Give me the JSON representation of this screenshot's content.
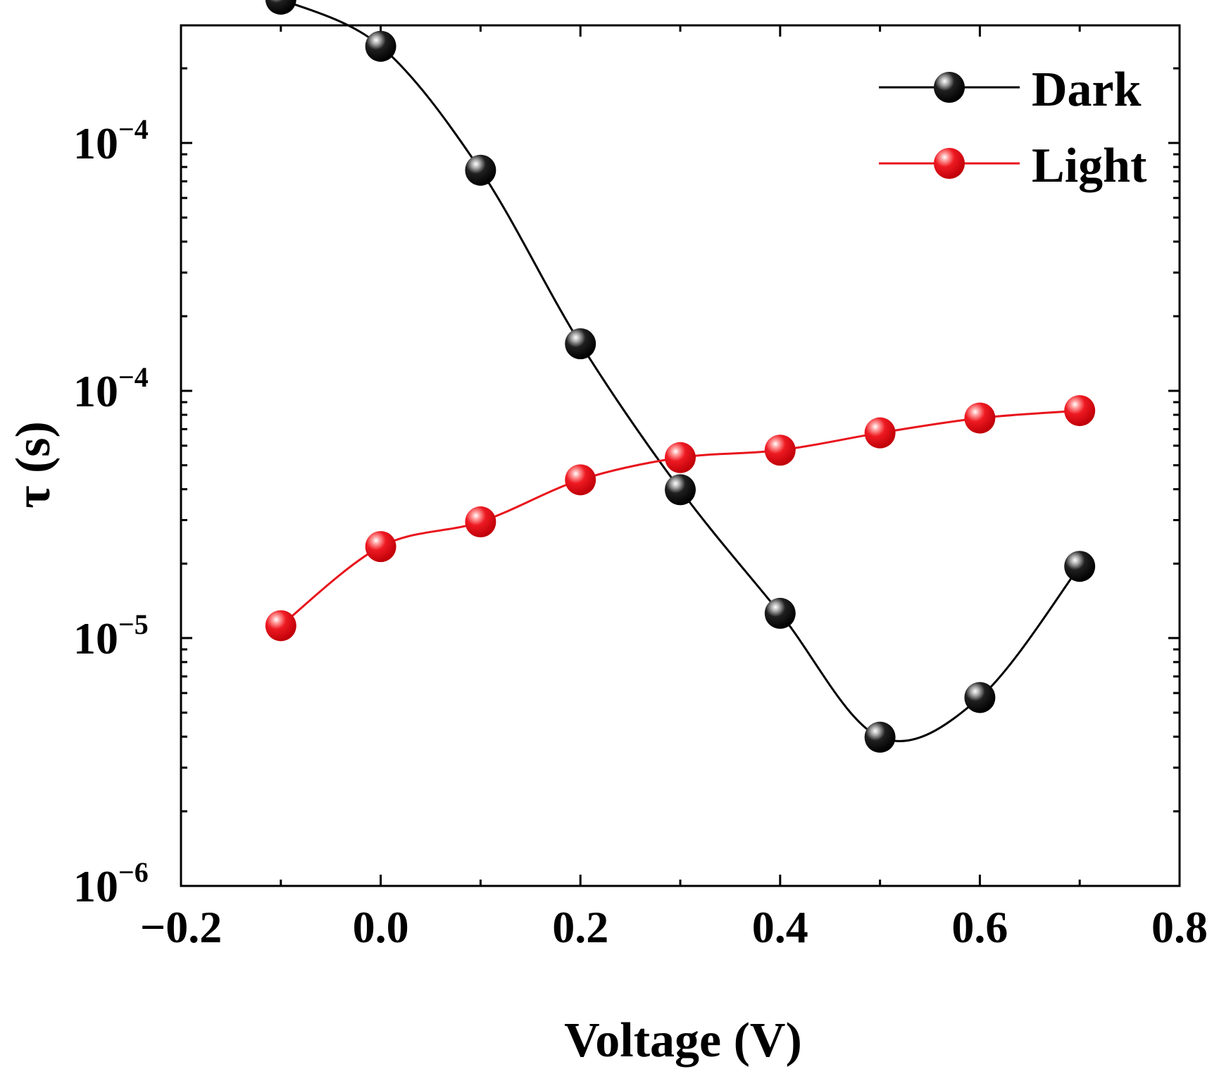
{
  "chart_data": {
    "type": "line",
    "title": "",
    "xlabel": "Voltage (V)",
    "ylabel": "τ (s)",
    "xlim": [
      -0.2,
      0.8
    ],
    "x_ticks": [
      -0.2,
      0.0,
      0.2,
      0.4,
      0.6,
      0.8
    ],
    "x_tick_labels": [
      "−0.2",
      "0.0",
      "0.2",
      "0.4",
      "0.6",
      "0.8"
    ],
    "y_scale": "log",
    "y_ticks": [
      {
        "base": "10",
        "exp": "−6"
      },
      {
        "base": "10",
        "exp": "−5"
      },
      {
        "base": "10",
        "exp": "−4"
      },
      {
        "base": "10",
        "exp": "−4"
      }
    ],
    "legend_position": "top-right",
    "series": [
      {
        "name": "Dark",
        "color": "#000000",
        "x": [
          -0.1,
          0.0,
          0.1,
          0.2,
          0.3,
          0.4,
          0.5,
          0.6,
          0.7
        ],
        "y_level": [
          3.58,
          3.39,
          2.89,
          2.19,
          1.6,
          1.1,
          0.6,
          0.76,
          1.29
        ]
      },
      {
        "name": "Light",
        "color": "#e8141c",
        "x": [
          -0.1,
          0.0,
          0.1,
          0.2,
          0.3,
          0.4,
          0.5,
          0.6,
          0.7
        ],
        "y_level": [
          1.05,
          1.37,
          1.47,
          1.64,
          1.73,
          1.76,
          1.83,
          1.89,
          1.92
        ]
      }
    ]
  }
}
